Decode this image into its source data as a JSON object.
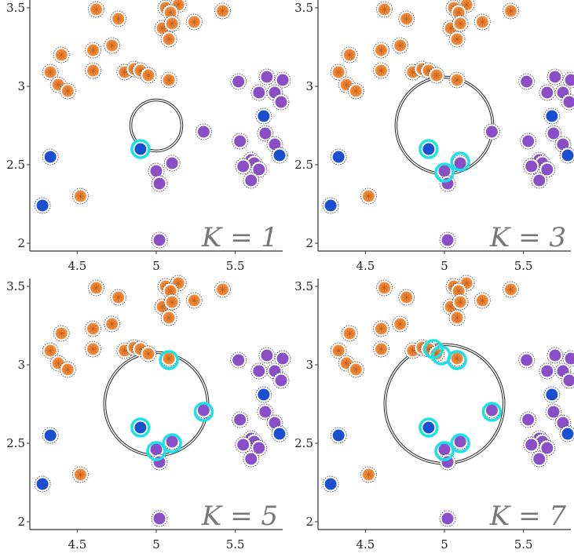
{
  "figure": {
    "colors": {
      "orange": "#f0883a",
      "purple": "#8a4fc7",
      "blue": "#1a4fd1",
      "cyan": "#1ee0e8",
      "axis": "#333333"
    }
  },
  "chart_data": [
    {
      "type": "scatter",
      "panel_label": "K = 1",
      "k": 1,
      "query": {
        "x": 5.0,
        "y": 2.75
      },
      "radius": 0.155,
      "xticks": [
        "4.5",
        "5",
        "5.5"
      ],
      "yticks": [
        "2",
        "2.5",
        "3",
        "3.5"
      ],
      "highlighted": [
        [
          4.9,
          2.6
        ]
      ],
      "xlim": [
        4.2,
        5.8
      ],
      "ylim": [
        1.95,
        3.55
      ],
      "legend": "none",
      "grid": false
    },
    {
      "type": "scatter",
      "panel_label": "K = 3",
      "k": 3,
      "query": {
        "x": 5.0,
        "y": 2.75
      },
      "radius": 0.3,
      "xticks": [
        "4.5",
        "5",
        "5.5"
      ],
      "yticks": [
        "2",
        "2.5",
        "3",
        "3.5"
      ],
      "highlighted": [
        [
          4.9,
          2.6
        ],
        [
          5.0,
          2.45
        ],
        [
          5.1,
          2.52
        ]
      ],
      "xlim": [
        4.2,
        5.8
      ],
      "ylim": [
        1.95,
        3.55
      ],
      "legend": "none",
      "grid": false
    },
    {
      "type": "scatter",
      "panel_label": "K = 5",
      "k": 5,
      "query": {
        "x": 5.0,
        "y": 2.75
      },
      "radius": 0.32,
      "xticks": [
        "4.5",
        "5",
        "5.5"
      ],
      "yticks": [
        "2",
        "2.5",
        "3",
        "3.5"
      ],
      "highlighted": [
        [
          4.9,
          2.6
        ],
        [
          5.0,
          2.45
        ],
        [
          5.1,
          2.5
        ],
        [
          5.08,
          3.03
        ],
        [
          5.3,
          2.7
        ]
      ],
      "xlim": [
        4.2,
        5.8
      ],
      "ylim": [
        1.95,
        3.55
      ],
      "legend": "none",
      "grid": false
    },
    {
      "type": "scatter",
      "panel_label": "K = 7",
      "k": 7,
      "query": {
        "x": 5.0,
        "y": 2.75
      },
      "radius": 0.37,
      "xticks": [
        "4.5",
        "5",
        "5.5"
      ],
      "yticks": [
        "2",
        "2.5",
        "3",
        "3.5"
      ],
      "highlighted": [
        [
          4.9,
          2.6
        ],
        [
          5.0,
          2.45
        ],
        [
          5.1,
          2.5
        ],
        [
          5.08,
          3.03
        ],
        [
          5.3,
          2.7
        ],
        [
          4.93,
          3.1
        ],
        [
          4.98,
          3.06
        ]
      ],
      "xlim": [
        4.2,
        5.8
      ],
      "ylim": [
        1.95,
        3.55
      ],
      "legend": "none",
      "grid": false
    }
  ],
  "points": {
    "orange": [
      [
        4.62,
        3.49
      ],
      [
        4.76,
        3.43
      ],
      [
        5.06,
        3.5
      ],
      [
        5.14,
        3.52
      ],
      [
        5.09,
        3.47
      ],
      [
        5.42,
        3.48
      ],
      [
        5.04,
        3.37
      ],
      [
        5.1,
        3.4
      ],
      [
        5.24,
        3.41
      ],
      [
        5.08,
        3.3
      ],
      [
        4.4,
        3.2
      ],
      [
        4.6,
        3.23
      ],
      [
        4.72,
        3.26
      ],
      [
        4.6,
        3.1
      ],
      [
        4.33,
        3.09
      ],
      [
        4.8,
        3.09
      ],
      [
        4.86,
        3.11
      ],
      [
        4.9,
        3.1
      ],
      [
        4.95,
        3.07
      ],
      [
        5.08,
        3.04
      ],
      [
        4.38,
        3.01
      ],
      [
        4.44,
        2.97
      ],
      [
        4.52,
        2.3
      ]
    ],
    "purple": [
      [
        5.52,
        3.03
      ],
      [
        5.7,
        3.06
      ],
      [
        5.8,
        3.04
      ],
      [
        5.75,
        2.96
      ],
      [
        5.65,
        2.96
      ],
      [
        5.79,
        2.9
      ],
      [
        5.3,
        2.71
      ],
      [
        5.69,
        2.7
      ],
      [
        5.53,
        2.65
      ],
      [
        5.75,
        2.63
      ],
      [
        5.6,
        2.53
      ],
      [
        5.62,
        2.51
      ],
      [
        5.55,
        2.49
      ],
      [
        5.65,
        2.47
      ],
      [
        5.1,
        2.51
      ],
      [
        5.0,
        2.46
      ],
      [
        5.02,
        2.38
      ],
      [
        5.6,
        2.4
      ],
      [
        5.02,
        2.02
      ]
    ],
    "blue": [
      [
        4.9,
        2.6
      ],
      [
        5.68,
        2.81
      ],
      [
        5.78,
        2.56
      ],
      [
        4.33,
        2.55
      ],
      [
        4.28,
        2.24
      ]
    ]
  }
}
